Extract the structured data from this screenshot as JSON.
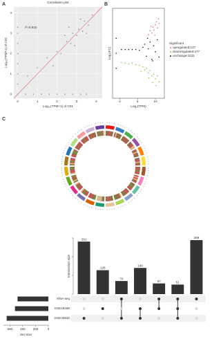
{
  "chart_data": [
    {
      "type": "scatter",
      "panel": "A",
      "title": "Correlation plot",
      "x_label": "Log₁₀(TPM+1) of C01",
      "y_label": "Log₁₀(TPM+1) of C02",
      "annotation": "r²=0.815",
      "xlim": [
        -0.2,
        4.3
      ],
      "ylim": [
        -0.2,
        4.3
      ],
      "xticks": [
        0,
        1,
        2,
        3,
        4
      ],
      "yticks": [
        0,
        1,
        2,
        3,
        4
      ],
      "grid": true,
      "background": "#ebebeb",
      "reference_line_color": "#e06666",
      "series": [
        {
          "color": "#8a8a9a",
          "x": [
            2.0,
            2.2,
            2.5,
            2.7,
            2.8,
            3.0,
            3.1,
            3.3,
            3.4,
            3.6,
            2.4,
            2.9,
            3.2,
            1.5,
            1.8,
            1.0,
            0.5,
            2.6,
            3.5,
            3.8,
            0.4,
            0.8,
            1.2,
            1.6,
            2.0,
            2.4,
            2.8,
            3.2,
            3.5,
            0,
            0,
            0,
            0,
            0,
            0,
            0,
            0
          ],
          "values": [
            2.1,
            2.0,
            2.6,
            2.5,
            3.0,
            2.9,
            3.2,
            3.1,
            3.6,
            3.4,
            2.9,
            2.4,
            3.7,
            1.8,
            1.4,
            1.3,
            0.9,
            3.3,
            3.0,
            3.9,
            0,
            0,
            0,
            0,
            0,
            0,
            0,
            0,
            0,
            0.5,
            1.0,
            1.5,
            2.0,
            2.5,
            3.0,
            3.3,
            0
          ]
        }
      ]
    },
    {
      "type": "scatter",
      "panel": "B",
      "x_label": "Log₂(TPM)",
      "y_label": "Log₂(FC)",
      "xlim": [
        -2,
        12.5
      ],
      "ylim": [
        -6,
        6
      ],
      "xticks": [
        0,
        5,
        10
      ],
      "grid": false,
      "background": "#ffffff",
      "legend_title": "Significant",
      "series": [
        {
          "name": "upregulated:127",
          "color": "#e8736b",
          "x": [
            8.0,
            8.5,
            9.0,
            9.3,
            9.6,
            10.0,
            10.3,
            10.6,
            11.0,
            9.8,
            8.8,
            10.8
          ],
          "values": [
            2.5,
            3.0,
            2.7,
            3.5,
            3.1,
            3.8,
            4.2,
            3.4,
            4.0,
            2.4,
            3.6,
            4.6
          ]
        },
        {
          "name": "downregulated:477",
          "color": "#7ac943",
          "x": [
            0.5,
            1.5,
            2.5,
            3.5,
            4.5,
            5.5,
            6.5,
            7.0,
            7.5,
            8.0,
            8.5,
            9.0,
            9.5,
            10.0,
            10.5,
            11.0,
            6.0,
            8.2,
            9.2,
            10.2
          ],
          "values": [
            -1.2,
            -1.3,
            -1.4,
            -1.3,
            -1.5,
            -1.6,
            -1.8,
            -2.2,
            -2.0,
            -2.6,
            -2.3,
            -3.0,
            -2.8,
            -3.4,
            -3.0,
            -3.8,
            -2.4,
            -3.3,
            -3.9,
            -4.3
          ]
        },
        {
          "name": "unchange:1031",
          "color": "#1a1a1a",
          "x": [
            0.5,
            1.5,
            2.5,
            3.5,
            4.5,
            5.5,
            6.5,
            7.0,
            7.5,
            8.0,
            8.5,
            9.0,
            9.5,
            10.0,
            10.5,
            11.0,
            7.8,
            9.2,
            -1,
            -1,
            -1
          ],
          "values": [
            0.5,
            0.5,
            0.5,
            0.5,
            0.5,
            0.4,
            0.8,
            1.2,
            -0.4,
            0.6,
            1.5,
            -0.8,
            1.0,
            0.2,
            1.8,
            -0.5,
            2.0,
            -1.0,
            2.0,
            0,
            -2.0
          ]
        }
      ]
    },
    {
      "type": "bar",
      "panel": "C",
      "y_label": "Intersection size",
      "values": [
        281,
        128,
        70,
        140,
        57,
        51,
        289
      ],
      "color": "#333333",
      "ylim": [
        0,
        300
      ],
      "yticks": [
        0,
        100,
        200,
        300
      ],
      "sets": [
        [
          2
        ],
        [
          1
        ],
        [
          0,
          2
        ],
        [
          1,
          2
        ],
        [
          0,
          1
        ],
        [
          0,
          1,
          2
        ],
        [
          0
        ]
      ]
    },
    {
      "type": "bar",
      "orientation": "horizontal",
      "x_label": "Set Size",
      "categories": [
        "RNA-seq",
        "GSE19188",
        "GSE33532"
      ],
      "values": [
        480,
        520,
        650
      ],
      "color": "#333333",
      "xlim": [
        0,
        700
      ],
      "xticks": [
        600,
        400,
        200,
        0
      ],
      "reversed": true
    }
  ]
}
